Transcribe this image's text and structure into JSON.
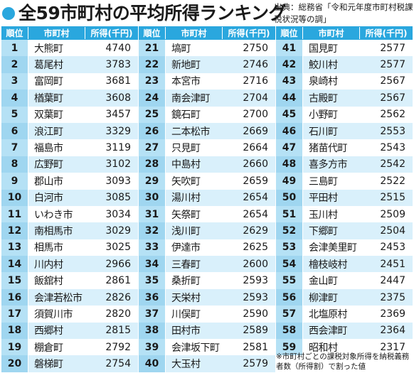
{
  "title": "全59市町村の平均所得ランキング",
  "source": "出典：総務省「令和元年度市町村税課税状況等の調」",
  "note": "※市町村ごとの課税対象所得を納税義務者数（所得割）で割った値",
  "headers": {
    "rank": "順位",
    "name": "市町村",
    "value": "所得(千円)"
  },
  "colors": {
    "accent": "#2aa7de",
    "row_alt": "#d9f0fb",
    "rank_cell": "#b5e1f5"
  },
  "columns": [
    [
      {
        "rank": "1",
        "name": "大熊町",
        "value": "4740"
      },
      {
        "rank": "2",
        "name": "葛尾村",
        "value": "3783"
      },
      {
        "rank": "3",
        "name": "富岡町",
        "value": "3681"
      },
      {
        "rank": "4",
        "name": "楢葉町",
        "value": "3608"
      },
      {
        "rank": "5",
        "name": "双葉町",
        "value": "3457"
      },
      {
        "rank": "6",
        "name": "浪江町",
        "value": "3329"
      },
      {
        "rank": "7",
        "name": "福島市",
        "value": "3119"
      },
      {
        "rank": "8",
        "name": "広野町",
        "value": "3102"
      },
      {
        "rank": "9",
        "name": "郡山市",
        "value": "3093"
      },
      {
        "rank": "10",
        "name": "白河市",
        "value": "3085"
      },
      {
        "rank": "11",
        "name": "いわき市",
        "value": "3034"
      },
      {
        "rank": "12",
        "name": "南相馬市",
        "value": "3029"
      },
      {
        "rank": "13",
        "name": "相馬市",
        "value": "3025"
      },
      {
        "rank": "14",
        "name": "川内村",
        "value": "2966"
      },
      {
        "rank": "15",
        "name": "飯舘村",
        "value": "2861"
      },
      {
        "rank": "16",
        "name": "会津若松市",
        "value": "2826"
      },
      {
        "rank": "17",
        "name": "須賀川市",
        "value": "2820"
      },
      {
        "rank": "18",
        "name": "西郷村",
        "value": "2815"
      },
      {
        "rank": "19",
        "name": "棚倉町",
        "value": "2792"
      },
      {
        "rank": "20",
        "name": "磐梯町",
        "value": "2754"
      }
    ],
    [
      {
        "rank": "21",
        "name": "塙町",
        "value": "2750"
      },
      {
        "rank": "22",
        "name": "新地町",
        "value": "2746"
      },
      {
        "rank": "23",
        "name": "本宮市",
        "value": "2716"
      },
      {
        "rank": "24",
        "name": "南会津町",
        "value": "2704"
      },
      {
        "rank": "25",
        "name": "鏡石町",
        "value": "2700"
      },
      {
        "rank": "26",
        "name": "二本松市",
        "value": "2669"
      },
      {
        "rank": "27",
        "name": "只見町",
        "value": "2664"
      },
      {
        "rank": "28",
        "name": "中島村",
        "value": "2660"
      },
      {
        "rank": "29",
        "name": "矢吹町",
        "value": "2659"
      },
      {
        "rank": "30",
        "name": "湯川村",
        "value": "2654"
      },
      {
        "rank": "31",
        "name": "矢祭町",
        "value": "2654"
      },
      {
        "rank": "32",
        "name": "浅川町",
        "value": "2629"
      },
      {
        "rank": "33",
        "name": "伊達市",
        "value": "2625"
      },
      {
        "rank": "34",
        "name": "三春町",
        "value": "2600"
      },
      {
        "rank": "35",
        "name": "桑折町",
        "value": "2593"
      },
      {
        "rank": "36",
        "name": "天栄村",
        "value": "2593"
      },
      {
        "rank": "37",
        "name": "川俣町",
        "value": "2590"
      },
      {
        "rank": "38",
        "name": "田村市",
        "value": "2589"
      },
      {
        "rank": "39",
        "name": "会津坂下町",
        "value": "2581"
      },
      {
        "rank": "40",
        "name": "大玉村",
        "value": "2579"
      }
    ],
    [
      {
        "rank": "41",
        "name": "国見町",
        "value": "2577"
      },
      {
        "rank": "42",
        "name": "鮫川村",
        "value": "2577"
      },
      {
        "rank": "43",
        "name": "泉崎村",
        "value": "2567"
      },
      {
        "rank": "44",
        "name": "古殿町",
        "value": "2567"
      },
      {
        "rank": "45",
        "name": "小野町",
        "value": "2562"
      },
      {
        "rank": "46",
        "name": "石川町",
        "value": "2553"
      },
      {
        "rank": "47",
        "name": "猪苗代町",
        "value": "2543"
      },
      {
        "rank": "48",
        "name": "喜多方市",
        "value": "2542"
      },
      {
        "rank": "49",
        "name": "三島町",
        "value": "2522"
      },
      {
        "rank": "50",
        "name": "平田村",
        "value": "2515"
      },
      {
        "rank": "51",
        "name": "玉川村",
        "value": "2509"
      },
      {
        "rank": "52",
        "name": "下郷町",
        "value": "2504"
      },
      {
        "rank": "53",
        "name": "会津美里町",
        "value": "2453"
      },
      {
        "rank": "54",
        "name": "檜枝岐村",
        "value": "2451"
      },
      {
        "rank": "55",
        "name": "金山町",
        "value": "2447"
      },
      {
        "rank": "56",
        "name": "柳津町",
        "value": "2375"
      },
      {
        "rank": "57",
        "name": "北塩原村",
        "value": "2369"
      },
      {
        "rank": "58",
        "name": "西会津町",
        "value": "2364"
      },
      {
        "rank": "59",
        "name": "昭和村",
        "value": "2317"
      }
    ]
  ]
}
